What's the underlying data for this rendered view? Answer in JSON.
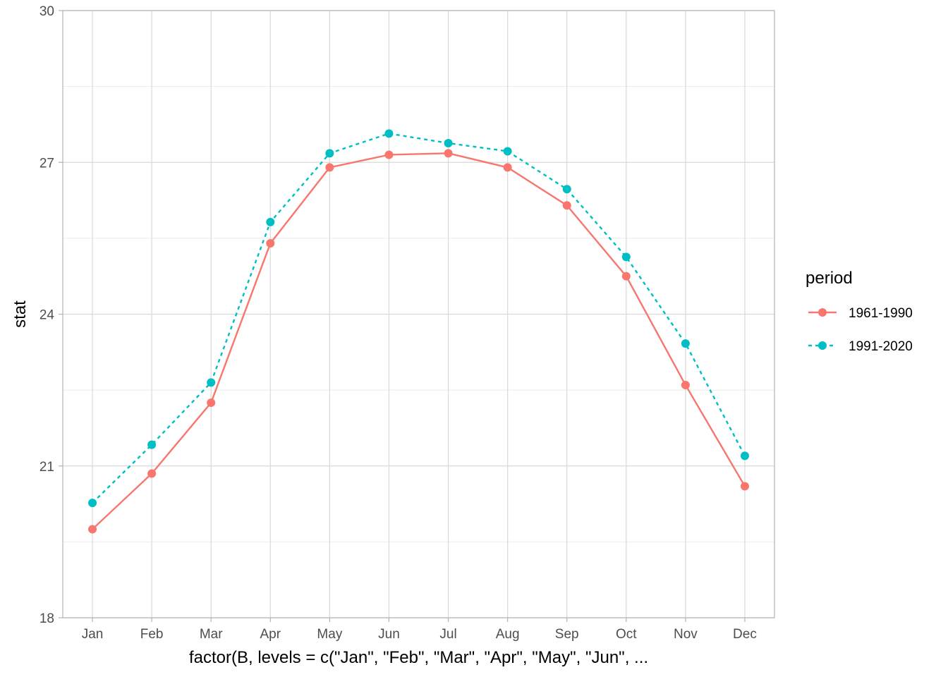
{
  "chart_data": {
    "type": "line",
    "xlabel": "factor(B, levels = c(\"Jan\", \"Feb\", \"Mar\", \"Apr\", \"May\", \"Jun\", ...",
    "ylabel": "stat",
    "categories": [
      "Jan",
      "Feb",
      "Mar",
      "Apr",
      "May",
      "Jun",
      "Jul",
      "Aug",
      "Sep",
      "Oct",
      "Nov",
      "Dec"
    ],
    "ylim": [
      18,
      30
    ],
    "yticks": [
      18,
      21,
      24,
      27,
      30
    ],
    "grid": true,
    "legend": {
      "title": "period",
      "position": "right"
    },
    "series": [
      {
        "name": "1961-1990",
        "color": "#F8766D",
        "line_style": "solid",
        "values": [
          19.75,
          20.85,
          22.25,
          25.4,
          26.9,
          27.15,
          27.18,
          26.9,
          26.15,
          24.75,
          22.6,
          20.6
        ]
      },
      {
        "name": "1991-2020",
        "color": "#00BFC4",
        "line_style": "dashed",
        "values": [
          20.27,
          21.42,
          22.65,
          25.82,
          27.18,
          27.57,
          27.38,
          27.22,
          26.47,
          25.13,
          23.42,
          21.2
        ]
      }
    ]
  }
}
